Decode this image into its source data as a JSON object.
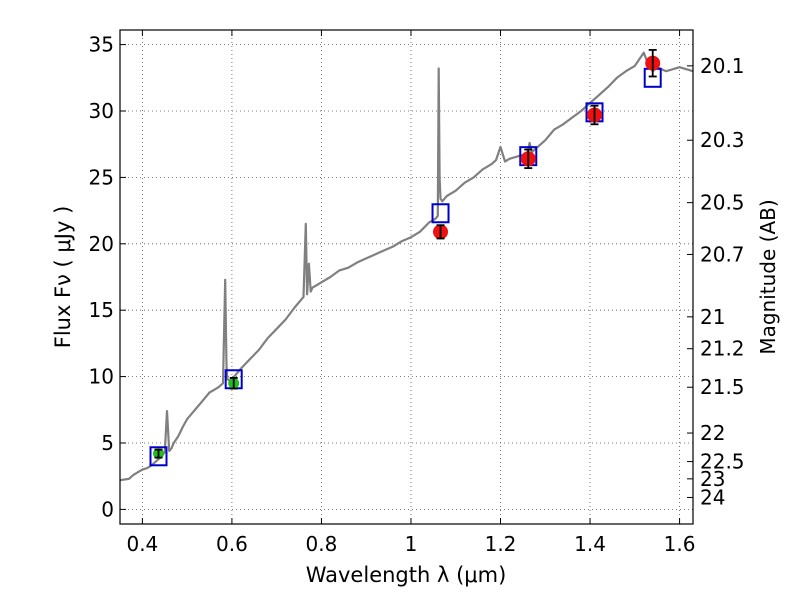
{
  "chart_data": {
    "type": "scatter",
    "xlabel": "Wavelength  λ (μm)",
    "ylabel": "Flux  Fν  ( μJy )",
    "y2label": "Magnitude (AB)",
    "xlim": [
      0.35,
      1.63
    ],
    "ylim": [
      -1.1,
      36.1
    ],
    "xticks": [
      0.4,
      0.6,
      0.8,
      1.0,
      1.2,
      1.4,
      1.6
    ],
    "xtick_labels": [
      "0.4",
      "0.6",
      "0.8",
      "1",
      "1.2",
      "1.4",
      "1.6"
    ],
    "yticks": [
      0,
      5,
      10,
      15,
      20,
      25,
      30,
      35
    ],
    "ytick_labels": [
      "0",
      "5",
      "10",
      "15",
      "20",
      "25",
      "30",
      "35"
    ],
    "y2ticks": [
      {
        "label": "20.1",
        "flux": 33.4
      },
      {
        "label": "20.3",
        "flux": 27.8
      },
      {
        "label": "20.5",
        "flux": 23.1
      },
      {
        "label": "20.7",
        "flux": 19.2
      },
      {
        "label": "21",
        "flux": 14.5
      },
      {
        "label": "21.2",
        "flux": 12.1
      },
      {
        "label": "21.5",
        "flux": 9.2
      },
      {
        "label": "22",
        "flux": 5.75
      },
      {
        "label": "22.5",
        "flux": 3.6
      },
      {
        "label": "23",
        "flux": 2.3
      },
      {
        "label": "24",
        "flux": 0.9
      }
    ],
    "grid": true,
    "series": [
      {
        "kind": "spectrum",
        "color": "#808080",
        "x": [
          0.35,
          0.37,
          0.38,
          0.39,
          0.4,
          0.41,
          0.42,
          0.43,
          0.44,
          0.45,
          0.455,
          0.46,
          0.465,
          0.47,
          0.48,
          0.49,
          0.5,
          0.51,
          0.52,
          0.53,
          0.54,
          0.55,
          0.56,
          0.57,
          0.58,
          0.585,
          0.588,
          0.59,
          0.595,
          0.6,
          0.62,
          0.64,
          0.66,
          0.68,
          0.7,
          0.72,
          0.74,
          0.76,
          0.765,
          0.768,
          0.772,
          0.776,
          0.78,
          0.79,
          0.8,
          0.82,
          0.84,
          0.86,
          0.88,
          0.9,
          0.92,
          0.94,
          0.96,
          0.98,
          1.0,
          1.02,
          1.04,
          1.05,
          1.055,
          1.06,
          1.062,
          1.064,
          1.066,
          1.07,
          1.08,
          1.1,
          1.12,
          1.14,
          1.16,
          1.18,
          1.19,
          1.2,
          1.21,
          1.22,
          1.24,
          1.26,
          1.265,
          1.27,
          1.28,
          1.3,
          1.32,
          1.34,
          1.36,
          1.38,
          1.4,
          1.42,
          1.44,
          1.46,
          1.48,
          1.5,
          1.52,
          1.53,
          1.54,
          1.55,
          1.57,
          1.6,
          1.63
        ],
        "y": [
          2.2,
          2.3,
          2.6,
          2.8,
          3.0,
          3.1,
          3.3,
          3.6,
          3.9,
          4.3,
          7.4,
          4.4,
          4.6,
          5.0,
          5.5,
          6.2,
          6.8,
          7.2,
          7.6,
          8.0,
          8.4,
          8.8,
          9.0,
          9.2,
          9.5,
          17.3,
          10.8,
          9.8,
          9.7,
          9.8,
          10.6,
          11.3,
          12.0,
          12.9,
          13.6,
          14.3,
          15.2,
          16.0,
          21.5,
          16.2,
          18.5,
          16.4,
          16.7,
          16.9,
          17.1,
          17.5,
          18.0,
          18.2,
          18.6,
          18.9,
          19.2,
          19.5,
          19.8,
          20.2,
          20.5,
          20.9,
          21.6,
          21.8,
          21.9,
          22.1,
          33.2,
          25.0,
          23.4,
          23.2,
          23.6,
          24.0,
          24.6,
          25.0,
          25.6,
          26.0,
          26.3,
          27.3,
          26.2,
          26.4,
          26.6,
          26.8,
          27.6,
          26.9,
          27.2,
          27.8,
          28.6,
          29.0,
          29.5,
          30.0,
          30.6,
          31.2,
          31.8,
          32.5,
          33.0,
          33.4,
          34.4,
          33.5,
          33.0,
          33.3,
          33.0,
          33.3,
          33.0
        ]
      },
      {
        "kind": "model_box",
        "color": "#0000cc",
        "x": [
          0.436,
          0.604,
          1.066,
          1.262,
          1.41,
          1.54
        ],
        "y": [
          4.0,
          9.8,
          22.3,
          26.6,
          29.9,
          32.5
        ]
      },
      {
        "kind": "observed_green",
        "color": "#22bb22",
        "x": [
          0.436,
          0.604
        ],
        "y": [
          4.2,
          9.5
        ],
        "yerr": [
          0.3,
          0.4
        ]
      },
      {
        "kind": "observed_red",
        "color": "#ee1111",
        "x": [
          1.066,
          1.262,
          1.41,
          1.54
        ],
        "y": [
          20.9,
          26.4,
          29.7,
          33.6
        ],
        "yerr": [
          0.5,
          0.7,
          0.7,
          1.0
        ]
      }
    ]
  }
}
